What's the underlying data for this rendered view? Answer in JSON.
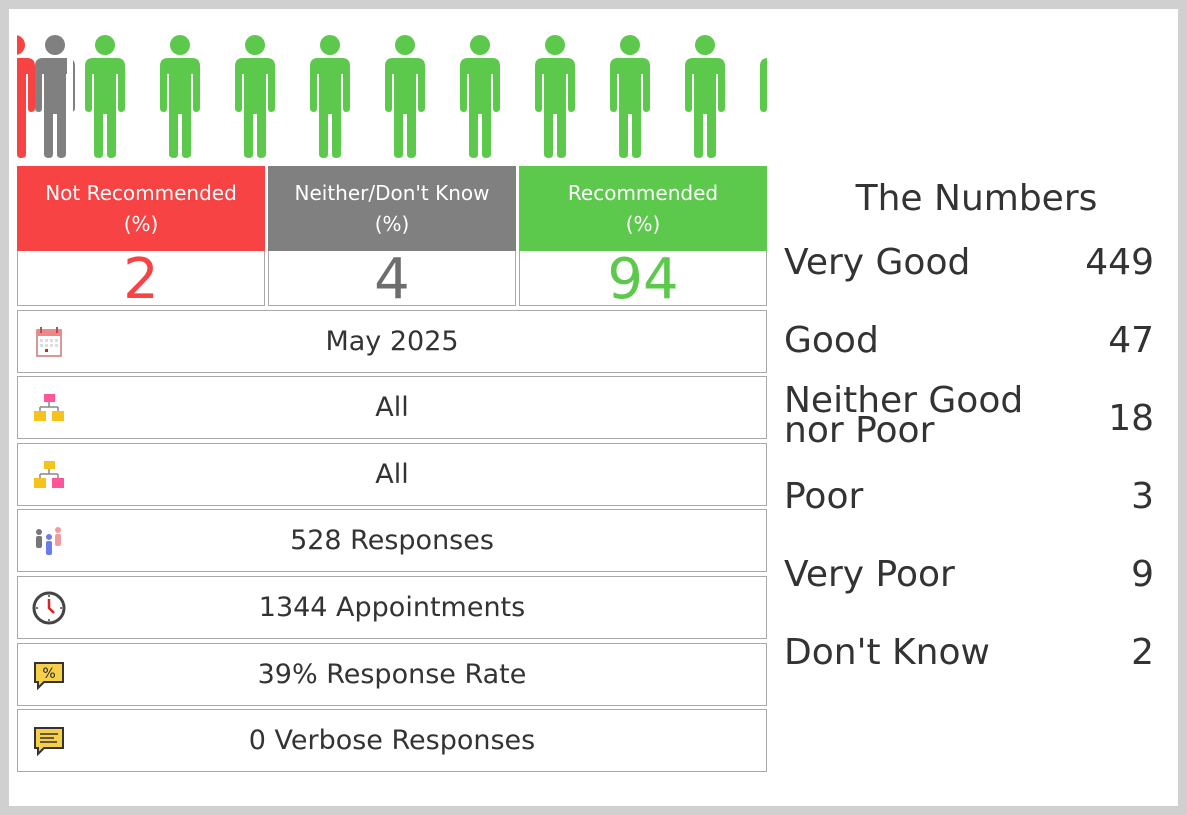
{
  "categories": [
    {
      "label_line1": "Not Recommended",
      "label_line2": "(%)",
      "value": "2",
      "color": "#f74344"
    },
    {
      "label_line1": "Neither/Don't Know",
      "label_line2": "(%)",
      "value": "4",
      "color": "#808080"
    },
    {
      "label_line1": "Recommended",
      "label_line2": "(%)",
      "value": "94",
      "color": "#5cc84c"
    }
  ],
  "people_icons": {
    "percent_not_recommended": 2,
    "percent_neither": 4,
    "percent_recommended": 94,
    "colors": {
      "red": "#f74344",
      "grey": "#808080",
      "green": "#5cc84c"
    }
  },
  "info_rows": [
    {
      "icon": "calendar-icon",
      "text": "May 2025"
    },
    {
      "icon": "org-chart-icon",
      "text": "All"
    },
    {
      "icon": "org-chart-alt-icon",
      "text": "All"
    },
    {
      "icon": "people-group-icon",
      "text": "528 Responses"
    },
    {
      "icon": "clock-icon",
      "text": "1344 Appointments"
    },
    {
      "icon": "percent-bubble-icon",
      "text": "39% Response Rate"
    },
    {
      "icon": "comment-icon",
      "text": "0 Verbose Responses"
    }
  ],
  "numbers": {
    "title": "The Numbers",
    "items": [
      {
        "label": "Very Good",
        "value": "449"
      },
      {
        "label": "Good",
        "value": "47"
      },
      {
        "label_line1": "Neither Good",
        "label_line2": "nor Poor",
        "value": "18"
      },
      {
        "label": "Poor",
        "value": "3"
      },
      {
        "label": "Very Poor",
        "value": "9"
      },
      {
        "label": "Don't Know",
        "value": "2"
      }
    ]
  }
}
